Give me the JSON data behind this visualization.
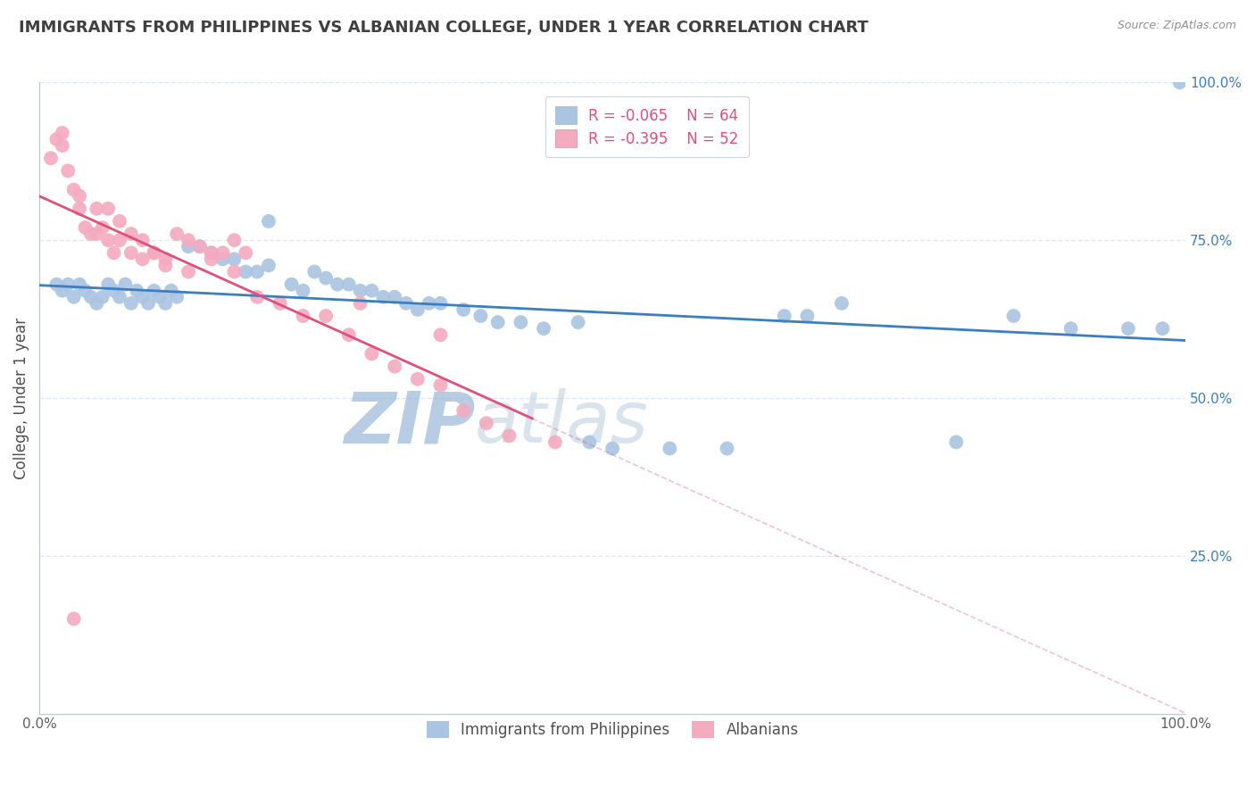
{
  "title": "IMMIGRANTS FROM PHILIPPINES VS ALBANIAN COLLEGE, UNDER 1 YEAR CORRELATION CHART",
  "source": "Source: ZipAtlas.com",
  "ylabel": "College, Under 1 year",
  "blue_label": "Immigrants from Philippines",
  "pink_label": "Albanians",
  "blue_R": -0.065,
  "blue_N": 64,
  "pink_R": -0.395,
  "pink_N": 52,
  "blue_color": "#aac4e2",
  "pink_color": "#f4aabf",
  "blue_line_color": "#3a7fc1",
  "pink_line_color": "#e0507a",
  "watermark_color": "#c5d8ee",
  "background_color": "#ffffff",
  "title_color": "#404040",
  "grid_color": "#dde8f2",
  "legend_color": "#e0507a",
  "blue_x": [
    1.5,
    2.0,
    2.5,
    3.0,
    3.5,
    4.0,
    4.5,
    5.0,
    5.5,
    6.0,
    6.5,
    7.0,
    7.5,
    8.0,
    8.5,
    9.0,
    9.5,
    10.0,
    10.5,
    11.0,
    11.5,
    12.0,
    13.0,
    14.0,
    15.0,
    16.0,
    17.0,
    18.0,
    19.0,
    20.0,
    22.0,
    23.0,
    24.0,
    25.0,
    26.0,
    27.0,
    28.0,
    29.0,
    30.0,
    31.0,
    32.0,
    33.0,
    34.0,
    35.0,
    37.0,
    38.5,
    40.0,
    42.0,
    44.0,
    47.0,
    50.0,
    55.0,
    60.0,
    65.0,
    67.0,
    70.0,
    80.0,
    85.0,
    90.0,
    95.0,
    98.0,
    99.5,
    20.0,
    48.0
  ],
  "blue_y": [
    68,
    67,
    68,
    66,
    68,
    67,
    66,
    65,
    66,
    68,
    67,
    66,
    68,
    65,
    67,
    66,
    65,
    67,
    66,
    65,
    67,
    66,
    74,
    74,
    73,
    72,
    72,
    70,
    70,
    71,
    68,
    67,
    70,
    69,
    68,
    68,
    67,
    67,
    66,
    66,
    65,
    64,
    65,
    65,
    64,
    63,
    62,
    62,
    61,
    62,
    42,
    42,
    42,
    63,
    63,
    65,
    43,
    63,
    61,
    61,
    61,
    100,
    78,
    43
  ],
  "pink_x": [
    1.0,
    1.5,
    2.0,
    2.0,
    2.5,
    3.0,
    3.5,
    3.5,
    4.0,
    4.5,
    5.0,
    5.5,
    6.0,
    6.5,
    7.0,
    8.0,
    9.0,
    10.0,
    11.0,
    12.0,
    13.0,
    14.0,
    15.0,
    16.0,
    17.0,
    18.0,
    5.0,
    6.0,
    7.0,
    8.0,
    9.0,
    10.0,
    11.0,
    13.0,
    15.0,
    17.0,
    19.0,
    21.0,
    23.0,
    25.0,
    27.0,
    29.0,
    31.0,
    33.0,
    35.0,
    37.0,
    39.0,
    41.0,
    45.0,
    28.0,
    35.0,
    3.0
  ],
  "pink_y": [
    88,
    91,
    90,
    92,
    86,
    83,
    82,
    80,
    77,
    76,
    76,
    77,
    75,
    73,
    75,
    73,
    72,
    73,
    71,
    76,
    75,
    74,
    72,
    73,
    75,
    73,
    80,
    80,
    78,
    76,
    75,
    73,
    72,
    70,
    73,
    70,
    66,
    65,
    63,
    63,
    60,
    57,
    55,
    53,
    52,
    48,
    46,
    44,
    43,
    65,
    60,
    15
  ]
}
